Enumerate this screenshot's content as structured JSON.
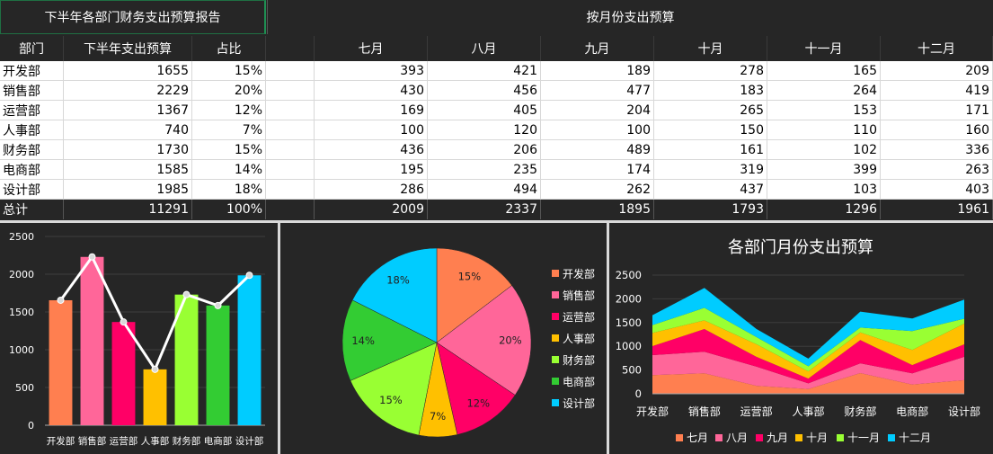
{
  "titles": {
    "left": "下半年各部门财务支出预算报告",
    "right": "按月份支出预算"
  },
  "table": {
    "headers": [
      "部门",
      "下半年支出预算",
      "占比"
    ],
    "month_headers": [
      "七月",
      "八月",
      "九月",
      "十月",
      "十一月",
      "十二月"
    ],
    "rows": [
      {
        "dept": "开发部",
        "budget": "1655",
        "pct": "15%",
        "months": [
          "393",
          "421",
          "189",
          "278",
          "165",
          "209"
        ]
      },
      {
        "dept": "销售部",
        "budget": "2229",
        "pct": "20%",
        "months": [
          "430",
          "456",
          "477",
          "183",
          "264",
          "419"
        ]
      },
      {
        "dept": "运营部",
        "budget": "1367",
        "pct": "12%",
        "months": [
          "169",
          "405",
          "204",
          "265",
          "153",
          "171"
        ]
      },
      {
        "dept": "人事部",
        "budget": "740",
        "pct": "7%",
        "months": [
          "100",
          "120",
          "100",
          "150",
          "110",
          "160"
        ]
      },
      {
        "dept": "财务部",
        "budget": "1730",
        "pct": "15%",
        "months": [
          "436",
          "206",
          "489",
          "161",
          "102",
          "336"
        ]
      },
      {
        "dept": "电商部",
        "budget": "1585",
        "pct": "14%",
        "months": [
          "195",
          "235",
          "174",
          "319",
          "399",
          "263"
        ]
      },
      {
        "dept": "设计部",
        "budget": "1985",
        "pct": "18%",
        "months": [
          "286",
          "494",
          "262",
          "437",
          "103",
          "403"
        ]
      }
    ],
    "total": {
      "dept": "总计",
      "budget": "11291",
      "pct": "100%",
      "months": [
        "2009",
        "2337",
        "1895",
        "1793",
        "1296",
        "1961"
      ]
    }
  },
  "colors": {
    "depts": [
      "#ff7f50",
      "#ff6699",
      "#ff0066",
      "#ffc000",
      "#99ff33",
      "#33cc33",
      "#00ccff"
    ],
    "months": [
      "#ff7f50",
      "#ff6699",
      "#ff0066",
      "#ffc000",
      "#99ff33",
      "#00ccff"
    ]
  },
  "chart_data": [
    {
      "type": "bar",
      "categories": [
        "开发部",
        "销售部",
        "运营部",
        "人事部",
        "财务部",
        "电商部",
        "设计部"
      ],
      "values": [
        1655,
        2229,
        1367,
        740,
        1730,
        1585,
        1985
      ],
      "overlay_line": [
        1655,
        2229,
        1367,
        740,
        1730,
        1585,
        1985
      ],
      "ylim": [
        0,
        2500
      ],
      "yticks": [
        0,
        500,
        1000,
        1500,
        2000,
        2500
      ]
    },
    {
      "type": "pie",
      "labels": [
        "开发部",
        "销售部",
        "运营部",
        "人事部",
        "财务部",
        "电商部",
        "设计部"
      ],
      "values": [
        1655,
        2229,
        1367,
        740,
        1730,
        1585,
        1985
      ],
      "percent_labels": [
        "15%",
        "20%",
        "12%",
        "7%",
        "15%",
        "14%",
        "18%"
      ],
      "legend_position": "right"
    },
    {
      "type": "area",
      "title": "各部门月份支出预算",
      "categories": [
        "开发部",
        "销售部",
        "运营部",
        "人事部",
        "财务部",
        "电商部",
        "设计部"
      ],
      "series": [
        {
          "name": "七月",
          "values": [
            393,
            430,
            169,
            100,
            436,
            195,
            286
          ]
        },
        {
          "name": "八月",
          "values": [
            421,
            456,
            405,
            120,
            206,
            235,
            494
          ]
        },
        {
          "name": "九月",
          "values": [
            189,
            477,
            204,
            100,
            489,
            174,
            262
          ]
        },
        {
          "name": "十月",
          "values": [
            278,
            183,
            265,
            150,
            161,
            319,
            437
          ]
        },
        {
          "name": "十一月",
          "values": [
            165,
            264,
            153,
            110,
            102,
            399,
            103
          ]
        },
        {
          "name": "十二月",
          "values": [
            209,
            419,
            171,
            160,
            336,
            263,
            403
          ]
        }
      ],
      "stacked": true,
      "ylim": [
        0,
        2500
      ],
      "yticks": [
        0,
        500,
        1000,
        1500,
        2000,
        2500
      ],
      "legend_position": "bottom"
    }
  ]
}
